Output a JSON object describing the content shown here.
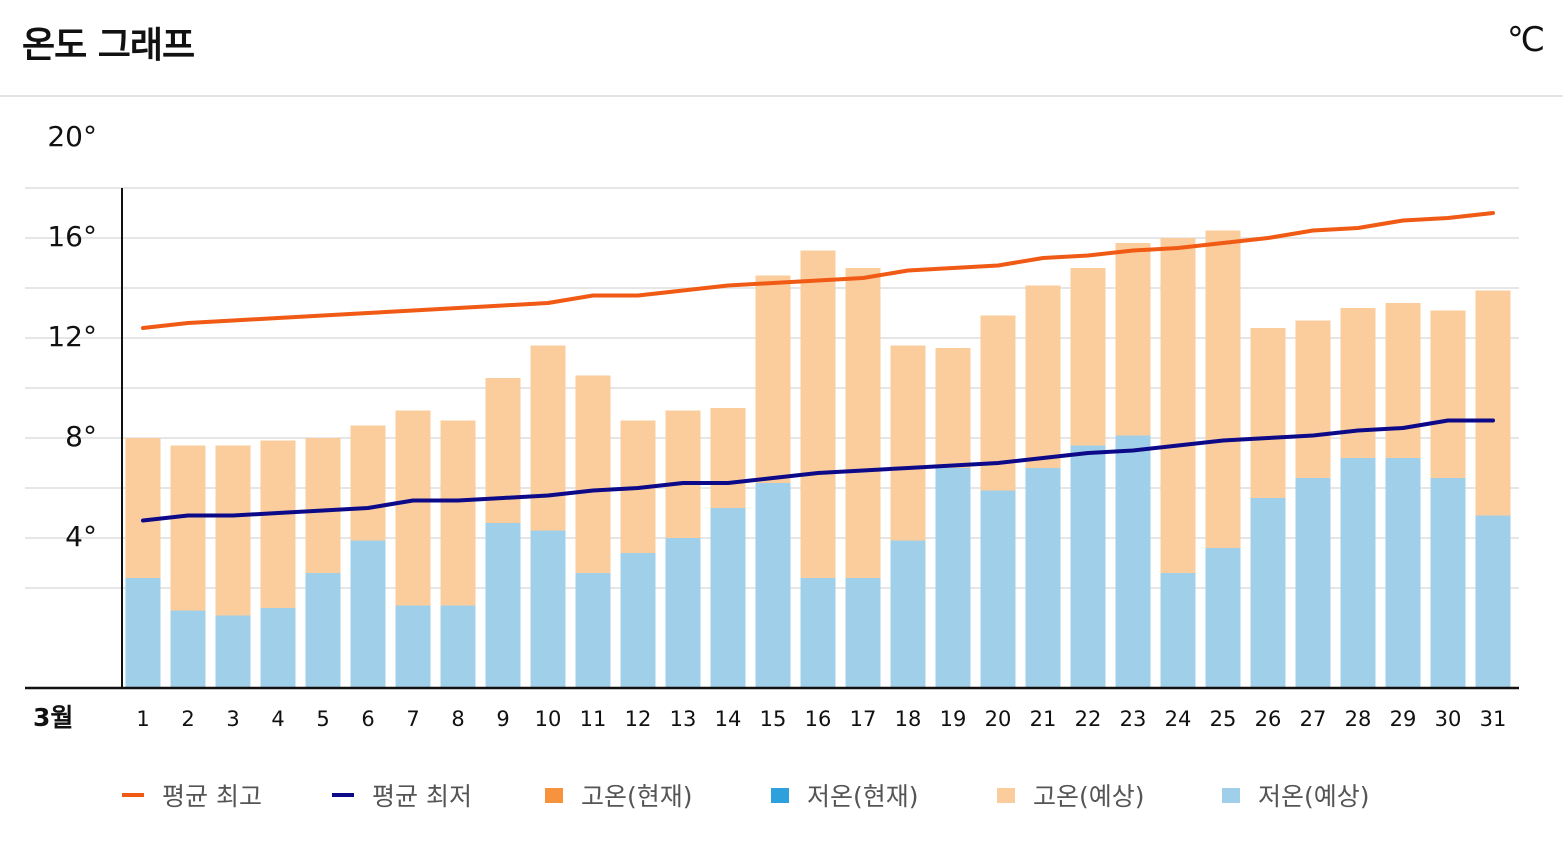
{
  "header": {
    "title": "온도 그래프",
    "unit": "℃"
  },
  "colors": {
    "avg_high": "#f05a14",
    "avg_low": "#0c0a88",
    "high_current": "#f7933c",
    "low_current": "#2ea0dd",
    "high_forecast": "#fbcc9c",
    "low_forecast": "#a0cfea",
    "grid": "#e6e6e6",
    "axis": "#111111"
  },
  "legend": [
    {
      "label": "평균 최고",
      "shape": "line",
      "color": "#f05a14"
    },
    {
      "label": "평균 최저",
      "shape": "line",
      "color": "#0c0a88"
    },
    {
      "label": "고온(현재)",
      "shape": "box",
      "color": "#f7933c"
    },
    {
      "label": "저온(현재)",
      "shape": "box",
      "color": "#2ea0dd"
    },
    {
      "label": "고온(예상)",
      "shape": "box",
      "color": "#fbcc9c"
    },
    {
      "label": "저온(예상)",
      "shape": "box",
      "color": "#a0cfea"
    }
  ],
  "chart_data": {
    "type": "bar",
    "title": "온도 그래프",
    "unit": "℃",
    "month_label": "3월",
    "ylim": [
      0,
      20
    ],
    "yticks": [
      4,
      8,
      12,
      16,
      20
    ],
    "ytick_labels": [
      "4°",
      "8°",
      "12°",
      "16°",
      "20°"
    ],
    "grid": true,
    "legend_position": "bottom",
    "categories": [
      "1",
      "2",
      "3",
      "4",
      "5",
      "6",
      "7",
      "8",
      "9",
      "10",
      "11",
      "12",
      "13",
      "14",
      "15",
      "16",
      "17",
      "18",
      "19",
      "20",
      "21",
      "22",
      "23",
      "24",
      "25",
      "26",
      "27",
      "28",
      "29",
      "30",
      "31"
    ],
    "series": [
      {
        "name": "고온(예상)",
        "type": "bar",
        "values": [
          10.0,
          9.7,
          9.7,
          9.9,
          10.0,
          10.5,
          11.1,
          10.7,
          12.4,
          13.7,
          12.5,
          10.7,
          11.1,
          11.2,
          16.5,
          17.5,
          16.8,
          13.7,
          13.6,
          14.9,
          16.1,
          16.8,
          17.8,
          18.0,
          18.3,
          14.4,
          14.7,
          15.2,
          15.4,
          15.1,
          15.9
        ]
      },
      {
        "name": "저온(예상)",
        "type": "bar",
        "values": [
          4.4,
          3.1,
          2.9,
          3.2,
          4.6,
          5.9,
          3.3,
          3.3,
          6.6,
          6.3,
          4.6,
          5.4,
          6.0,
          7.2,
          8.2,
          4.4,
          4.4,
          5.9,
          8.8,
          7.9,
          8.8,
          9.7,
          10.1,
          4.6,
          5.6,
          7.6,
          8.4,
          9.2,
          9.2,
          8.4,
          6.9
        ]
      },
      {
        "name": "평균 최고",
        "type": "line",
        "values": [
          14.4,
          14.6,
          14.7,
          14.8,
          14.9,
          15.0,
          15.1,
          15.2,
          15.3,
          15.4,
          15.7,
          15.7,
          15.9,
          16.1,
          16.2,
          16.3,
          16.4,
          16.7,
          16.8,
          16.9,
          17.2,
          17.3,
          17.5,
          17.6,
          17.8,
          18.0,
          18.3,
          18.4,
          18.7,
          18.8,
          19.0
        ]
      },
      {
        "name": "평균 최저",
        "type": "line",
        "values": [
          6.7,
          6.9,
          6.9,
          7.0,
          7.1,
          7.2,
          7.5,
          7.5,
          7.6,
          7.7,
          7.9,
          8.0,
          8.2,
          8.2,
          8.4,
          8.6,
          8.7,
          8.8,
          8.9,
          9.0,
          9.2,
          9.4,
          9.5,
          9.7,
          9.9,
          10.0,
          10.1,
          10.3,
          10.4,
          10.7,
          10.7
        ]
      }
    ]
  }
}
